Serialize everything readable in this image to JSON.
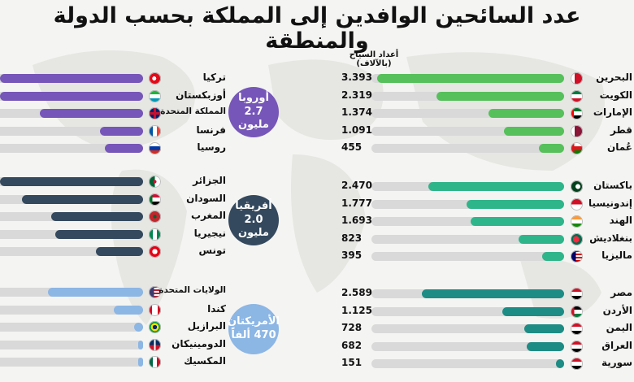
{
  "chart_data": {
    "type": "bar",
    "title": "عدد السائحين الوافدين إلى المملكة بحسب الدولة والمنطقة",
    "unit_label": "أعداد السياح (بالآلاف)",
    "colors": {
      "gulf": "#56c05a",
      "asia": "#2fb58a",
      "arab": "#1d8c84",
      "europe": "#7656b8",
      "africa": "#34495e",
      "americas": "#8cb6e4"
    },
    "right_groups": [
      {
        "key": "gulf",
        "items": [
          {
            "country": "البحرين",
            "value": 3393,
            "label": "3.393",
            "flag": "bahrain-flag-icon"
          },
          {
            "country": "الكويت",
            "value": 2319,
            "label": "2.319",
            "flag": "kuwait-flag-icon"
          },
          {
            "country": "الإمارات",
            "value": 1374,
            "label": "1.374",
            "flag": "uae-flag-icon"
          },
          {
            "country": "قطر",
            "value": 1091,
            "label": "1.091",
            "flag": "qatar-flag-icon"
          },
          {
            "country": "عُمان",
            "value": 455,
            "label": "455",
            "flag": "oman-flag-icon"
          }
        ]
      },
      {
        "key": "asia",
        "items": [
          {
            "country": "باكستان",
            "value": 2470,
            "label": "2.470",
            "flag": "pakistan-flag-icon"
          },
          {
            "country": "إندونيسيا",
            "value": 1777,
            "label": "1.777",
            "flag": "indonesia-flag-icon"
          },
          {
            "country": "الهند",
            "value": 1693,
            "label": "1.693",
            "flag": "india-flag-icon"
          },
          {
            "country": "بنغلاديش",
            "value": 823,
            "label": "823",
            "flag": "bangladesh-flag-icon"
          },
          {
            "country": "ماليزيا",
            "value": 395,
            "label": "395",
            "flag": "malaysia-flag-icon"
          }
        ]
      },
      {
        "key": "arab",
        "items": [
          {
            "country": "مصر",
            "value": 2589,
            "label": "2.589",
            "flag": "egypt-flag-icon"
          },
          {
            "country": "الأردن",
            "value": 1125,
            "label": "1.125",
            "flag": "jordan-flag-icon"
          },
          {
            "country": "اليمن",
            "value": 728,
            "label": "728",
            "flag": "yemen-flag-icon"
          },
          {
            "country": "العراق",
            "value": 682,
            "label": "682",
            "flag": "iraq-flag-icon"
          },
          {
            "country": "سورية",
            "value": 151,
            "label": "151",
            "flag": "syria-flag-icon"
          }
        ]
      }
    ],
    "left_groups": [
      {
        "key": "europe",
        "region": "أوروبا",
        "total": "2.7 مليون",
        "items": [
          {
            "country": "تركيا",
            "value": 1250,
            "flag": "turkey-flag-icon"
          },
          {
            "country": "أوزبكستان",
            "value": 1250,
            "flag": "uzbekistan-flag-icon"
          },
          {
            "country": "المملكة المتحدة",
            "value": 900,
            "flag": "uk-flag-icon"
          },
          {
            "country": "فرنسا",
            "value": 380,
            "flag": "france-flag-icon"
          },
          {
            "country": "روسيا",
            "value": 335,
            "flag": "russia-flag-icon"
          }
        ]
      },
      {
        "key": "africa",
        "region": "أفريقيا",
        "total": "2.0 مليون",
        "items": [
          {
            "country": "الجزائر",
            "value": 1250,
            "flag": "algeria-flag-icon"
          },
          {
            "country": "السودان",
            "value": 1060,
            "flag": "sudan-flag-icon"
          },
          {
            "country": "المغرب",
            "value": 800,
            "flag": "morocco-flag-icon"
          },
          {
            "country": "نيجيريا",
            "value": 765,
            "flag": "nigeria-flag-icon"
          },
          {
            "country": "تونس",
            "value": 415,
            "flag": "tunisia-flag-icon"
          }
        ]
      },
      {
        "key": "americas",
        "region": "الأمريكتان",
        "total": "470 ألفاً",
        "items": [
          {
            "country": "الولايات المتحدة",
            "value": 830,
            "flag": "usa-flag-icon"
          },
          {
            "country": "كندا",
            "value": 255,
            "flag": "canada-flag-icon"
          },
          {
            "country": "البرازيل",
            "value": 80,
            "flag": "brazil-flag-icon"
          },
          {
            "country": "الدومينيكان",
            "value": 45,
            "flag": "dominican-flag-icon"
          },
          {
            "country": "المكسيك",
            "value": 45,
            "flag": "mexico-flag-icon"
          }
        ]
      }
    ]
  }
}
